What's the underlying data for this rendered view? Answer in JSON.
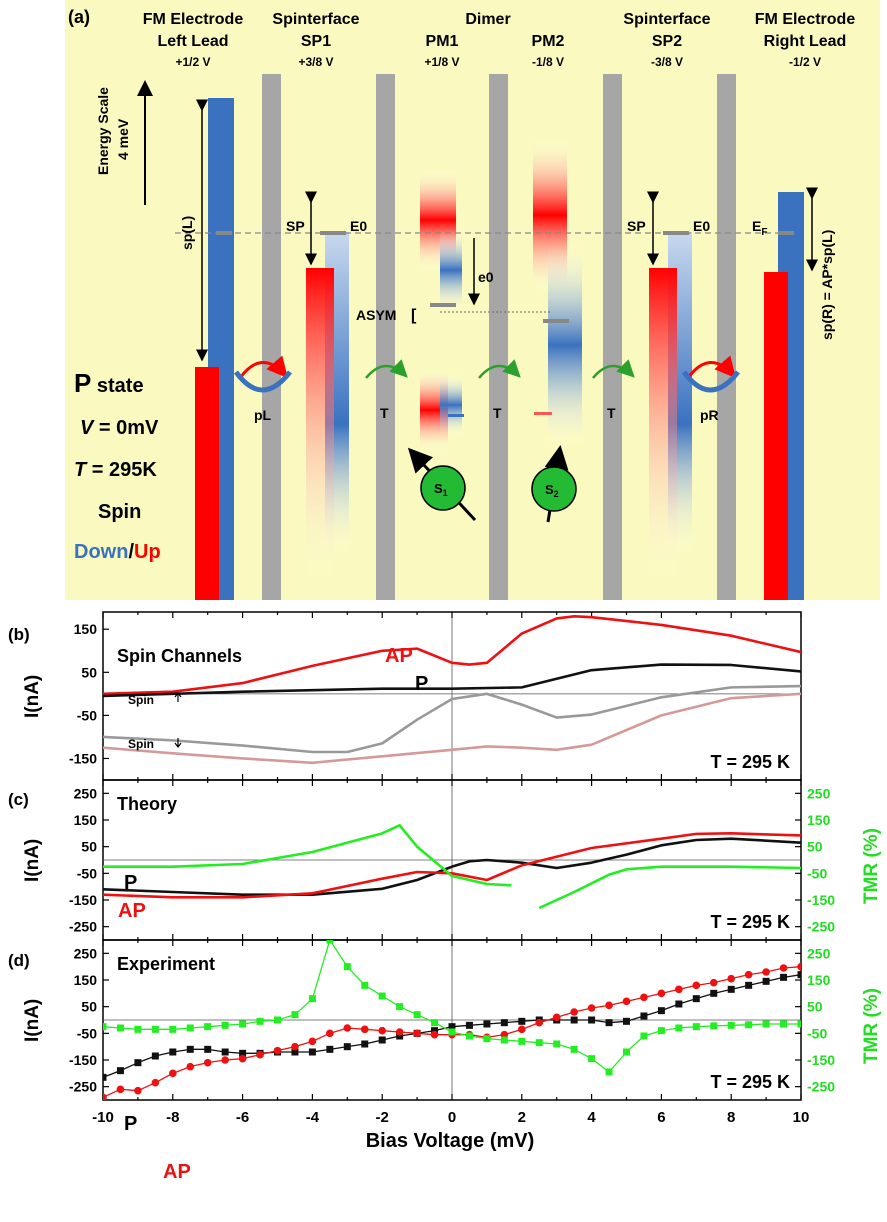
{
  "panel_a": {
    "label": "(a)",
    "headers": {
      "left_lead": [
        "FM Electrode",
        "Left Lead",
        "+1/2 V"
      ],
      "sp1": [
        "Spinterface",
        "SP1",
        "+3/8 V"
      ],
      "dimer": "Dimer",
      "pm1": [
        "PM1",
        "+1/8 V"
      ],
      "pm2": [
        "PM2",
        "-1/8 V"
      ],
      "sp2": [
        "Spinterface",
        "SP2",
        "-3/8 V"
      ],
      "right_lead": [
        "FM Electrode",
        "Right Lead",
        "-1/2 V"
      ]
    },
    "energy_scale": [
      "Energy Scale",
      "4 meV"
    ],
    "labels": {
      "spL": "sp(L)",
      "spR": "sp(R) = AP*sp(L)",
      "sp_left": "SP",
      "e0_left": "E0",
      "sp_right": "SP",
      "e0_right": "E0",
      "ef": "E",
      "ef_sub": "F",
      "e0_small": "e0",
      "asym": "ASYM",
      "pL": "pL",
      "pR": "pR",
      "t1": "T",
      "t2": "T",
      "t3": "T",
      "s1": "S",
      "s1_sub": "1",
      "s2": "S",
      "s2_sub": "2"
    },
    "state": {
      "title_p": "P",
      "title_rest": " state",
      "v": "V",
      "v_rest": " = 0mV",
      "t": "T",
      "t_rest": " = 295K",
      "spin": "Spin",
      "down": "Down",
      "slash": "/",
      "up": "Up"
    },
    "colors": {
      "bg": "#fafac0",
      "down": "#3a72c0",
      "up": "#ff0000",
      "barrier": "#a6a6a6",
      "green": "#2ca02c",
      "spin_ball": "#22bb33"
    }
  },
  "chart_data": [
    {
      "type": "line",
      "panel": "(b)",
      "title": "Spin Channels",
      "annotation": "T = 295 K",
      "ylabel": "I(nA)",
      "ylim": [
        -200,
        190
      ],
      "yticks": [
        "150",
        "50",
        "-50",
        "-150"
      ],
      "xlim": [
        -10,
        10
      ],
      "labels": {
        "ap": "AP",
        "p": "P",
        "spin_up": "Spin",
        "spin_down": "Spin"
      },
      "series": [
        {
          "name": "AP",
          "color": "#ee1111",
          "x": [
            -10,
            -8,
            -6,
            -4,
            -2,
            -1,
            0,
            0.5,
            1,
            2,
            3,
            3.5,
            4,
            6,
            8,
            10
          ],
          "y": [
            0,
            5,
            25,
            65,
            100,
            105,
            72,
            68,
            72,
            140,
            175,
            180,
            178,
            160,
            135,
            97
          ]
        },
        {
          "name": "P",
          "color": "#111111",
          "x": [
            -10,
            -6,
            -2,
            0,
            2,
            4,
            6,
            8,
            10
          ],
          "y": [
            -5,
            5,
            12,
            12,
            15,
            55,
            68,
            67,
            52
          ]
        },
        {
          "color": "#999999",
          "x": [
            -10,
            -8,
            -6,
            -4,
            -3,
            -2,
            -1,
            0,
            1,
            2,
            3,
            4,
            6,
            8,
            10
          ],
          "y": [
            -100,
            -108,
            -120,
            -135,
            -135,
            -115,
            -60,
            -12,
            0,
            -25,
            -55,
            -48,
            -8,
            15,
            18
          ]
        },
        {
          "color": "#d49a9a",
          "x": [
            -10,
            -8,
            -6,
            -4,
            -2,
            0,
            1,
            2,
            3,
            4,
            6,
            8,
            10
          ],
          "y": [
            -125,
            -138,
            -150,
            -160,
            -145,
            -130,
            -122,
            -125,
            -130,
            -118,
            -50,
            -10,
            0
          ]
        }
      ]
    },
    {
      "type": "line",
      "panel": "(c)",
      "title": "Theory",
      "annotation": "T = 295 K",
      "ylabel": "I(nA)",
      "y2label": "TMR (%)",
      "ylim": [
        -300,
        300
      ],
      "yticks": [
        "250",
        "150",
        "50",
        "-50",
        "-150",
        "-250"
      ],
      "y2ticks": [
        "250",
        "150",
        "50",
        "-50",
        "-150",
        "-250"
      ],
      "xlim": [
        -10,
        10
      ],
      "labels": {
        "p": "P",
        "ap": "AP"
      },
      "series": [
        {
          "name": "P",
          "color": "#111111",
          "x": [
            -10,
            -8,
            -6,
            -4,
            -2,
            -1,
            0,
            0.5,
            1,
            2,
            3,
            4,
            5,
            6,
            7,
            8,
            10
          ],
          "y": [
            -110,
            -120,
            -130,
            -130,
            -108,
            -75,
            -25,
            -5,
            0,
            -10,
            -30,
            -10,
            20,
            55,
            75,
            80,
            65
          ]
        },
        {
          "name": "AP",
          "color": "#ee1111",
          "x": [
            -10,
            -8,
            -6,
            -4,
            -2,
            -1,
            0,
            1,
            2,
            4,
            6,
            7,
            8,
            10
          ],
          "y": [
            -130,
            -140,
            -140,
            -125,
            -70,
            -45,
            -50,
            -75,
            -20,
            45,
            80,
            98,
            100,
            92
          ]
        },
        {
          "color": "#22ee22",
          "x": [
            -10,
            -8,
            -6,
            -4,
            -2,
            -1.5,
            -1,
            0,
            1,
            1.7
          ],
          "y": [
            -25,
            -25,
            -15,
            30,
            100,
            130,
            50,
            -60,
            -90,
            -95
          ]
        },
        {
          "color": "#22ee22",
          "x": [
            2.5,
            3.5,
            4.5,
            5,
            6,
            8,
            10
          ],
          "y": [
            -180,
            -120,
            -55,
            -35,
            -25,
            -25,
            -30
          ]
        }
      ]
    },
    {
      "type": "line",
      "panel": "(d)",
      "title": "Experiment",
      "annotation": "T = 295 K",
      "ylabel": "I(nA)",
      "y2label": "TMR (%)",
      "xlabel": "Bias Voltage (mV)",
      "ylim": [
        -300,
        300
      ],
      "yticks": [
        "250",
        "150",
        "50",
        "-50",
        "-150",
        "-250"
      ],
      "y2ticks": [
        "250",
        "150",
        "50",
        "-50",
        "-150",
        "-250"
      ],
      "xlim": [
        -10,
        10
      ],
      "xticks": [
        "-10",
        "-8",
        "-6",
        "-4",
        "-2",
        "0",
        "2",
        "4",
        "6",
        "8",
        "10"
      ],
      "labels": {
        "p": "P",
        "ap": "AP"
      },
      "series": [
        {
          "name": "P",
          "color": "#111111",
          "marker": "square",
          "x": [
            -10,
            -9.5,
            -9,
            -8.5,
            -8,
            -7.5,
            -7,
            -6.5,
            -6,
            -5.5,
            -5,
            -4.5,
            -4,
            -3.5,
            -3,
            -2.5,
            -2,
            -1.5,
            -1,
            -0.5,
            0,
            0.5,
            1,
            1.5,
            2,
            2.5,
            3,
            3.5,
            4,
            4.5,
            5,
            5.5,
            6,
            6.5,
            7,
            7.5,
            8,
            8.5,
            9,
            9.5,
            10
          ],
          "y": [
            -215,
            -190,
            -160,
            -135,
            -120,
            -110,
            -110,
            -120,
            -125,
            -125,
            -120,
            -120,
            -120,
            -110,
            -100,
            -90,
            -75,
            -60,
            -50,
            -40,
            -25,
            -20,
            -15,
            -10,
            -5,
            0,
            0,
            0,
            0,
            -10,
            -5,
            15,
            35,
            60,
            80,
            100,
            115,
            130,
            145,
            160,
            170
          ]
        },
        {
          "name": "AP",
          "color": "#ee1111",
          "marker": "circle",
          "x": [
            -10,
            -9.5,
            -9,
            -8.5,
            -8,
            -7.5,
            -7,
            -6.5,
            -6,
            -5.5,
            -5,
            -4.5,
            -4,
            -3.5,
            -3,
            -2.5,
            -2,
            -1.5,
            -1,
            -0.5,
            0,
            0.5,
            1,
            1.5,
            2,
            2.5,
            3,
            3.5,
            4,
            4.5,
            5,
            5.5,
            6,
            6.5,
            7,
            7.5,
            8,
            8.5,
            9,
            9.5,
            10
          ],
          "y": [
            -290,
            -260,
            -265,
            -235,
            -200,
            -175,
            -160,
            -150,
            -145,
            -130,
            -115,
            -100,
            -80,
            -50,
            -30,
            -35,
            -40,
            -45,
            -50,
            -55,
            -55,
            -55,
            -65,
            -55,
            -35,
            -10,
            10,
            30,
            45,
            55,
            70,
            85,
            100,
            115,
            130,
            140,
            155,
            170,
            180,
            195,
            200
          ]
        },
        {
          "color": "#22ee22",
          "marker": "square",
          "x": [
            -10,
            -9.5,
            -9,
            -8.5,
            -8,
            -7.5,
            -7,
            -6.5,
            -6,
            -5.5,
            -5,
            -4.5,
            -4,
            -3.5,
            -3,
            -2.5,
            -2,
            -1.5,
            -1,
            -0.5,
            0,
            0.5,
            1,
            1.5,
            2,
            2.5,
            3,
            3.5,
            4,
            4.5,
            5,
            5.5,
            6,
            6.5,
            7,
            7.5,
            8,
            8.5,
            9,
            9.5,
            10
          ],
          "y": [
            -25,
            -30,
            -35,
            -35,
            -35,
            -30,
            -25,
            -20,
            -15,
            -5,
            0,
            20,
            80,
            300,
            200,
            130,
            90,
            50,
            20,
            -10,
            -45,
            -60,
            -70,
            -75,
            -80,
            -85,
            -90,
            -110,
            -145,
            -195,
            -120,
            -60,
            -40,
            -30,
            -25,
            -22,
            -20,
            -18,
            -15,
            -15,
            -15
          ]
        }
      ]
    }
  ]
}
